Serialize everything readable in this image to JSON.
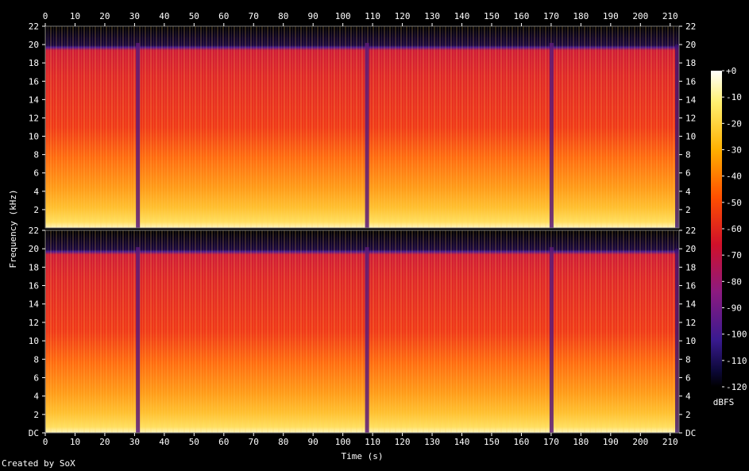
{
  "chart_data": {
    "type": "heatmap",
    "title": "",
    "xlabel": "Time (s)",
    "ylabel": "Frequency (kHz)",
    "xlim": [
      0,
      213
    ],
    "ylim": [
      0,
      22
    ],
    "x_ticks": [
      "0",
      "10",
      "20",
      "30",
      "40",
      "50",
      "60",
      "70",
      "80",
      "90",
      "100",
      "110",
      "120",
      "130",
      "140",
      "150",
      "160",
      "170",
      "180",
      "190",
      "200",
      "210"
    ],
    "y_ticks_top": [
      "2",
      "4",
      "6",
      "8",
      "10",
      "12",
      "14",
      "16",
      "18",
      "20",
      "22"
    ],
    "y_ticks_bottom": [
      "DC",
      "2",
      "4",
      "6",
      "8",
      "10",
      "12",
      "14",
      "16",
      "18",
      "20",
      "22"
    ],
    "channels": [
      {
        "name": "channel-1",
        "dropouts_s": [
          31,
          108,
          170
        ],
        "cutoff_khz": 20
      },
      {
        "name": "channel-2",
        "dropouts_s": [
          31,
          108,
          170
        ],
        "cutoff_khz": 20
      }
    ],
    "colorbar": {
      "label": "dBFS",
      "range": [
        -120,
        0
      ],
      "ticks": [
        "+0",
        "-10",
        "-20",
        "-30",
        "-40",
        "-50",
        "-60",
        "-70",
        "-80",
        "-90",
        "-100",
        "-110",
        "-120"
      ]
    }
  },
  "footer": {
    "credit": "Created by SoX"
  }
}
